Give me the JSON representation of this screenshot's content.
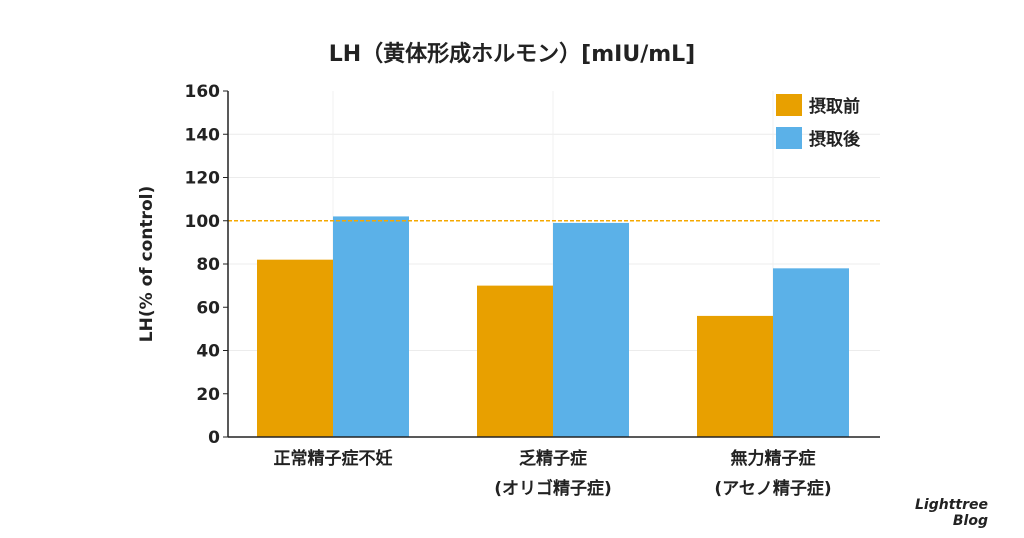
{
  "chart_data": {
    "type": "bar",
    "title": "LH（黄体形成ホルモン）[mIU/mL]",
    "ylabel": "LH(% of control)",
    "xlabel": "",
    "ylim": [
      0,
      160
    ],
    "yticks": [
      0,
      20,
      40,
      60,
      80,
      100,
      120,
      140,
      160
    ],
    "categories": [
      [
        "正常精子症不妊"
      ],
      [
        "乏精子症",
        "(オリゴ精子症)"
      ],
      [
        "無力精子症",
        "(アセノ精子症)"
      ]
    ],
    "series": [
      {
        "name": "摂取前",
        "color": "#E8A000",
        "values": [
          82,
          70,
          56
        ]
      },
      {
        "name": "摂取後",
        "color": "#5BB1E8",
        "values": [
          102,
          99,
          78
        ]
      }
    ],
    "reference_line": {
      "value": 100,
      "color": "#F5A800",
      "style": "dashed"
    },
    "grid": true,
    "legend": "top-right"
  },
  "watermark": [
    "Lighttree",
    "Blog"
  ]
}
